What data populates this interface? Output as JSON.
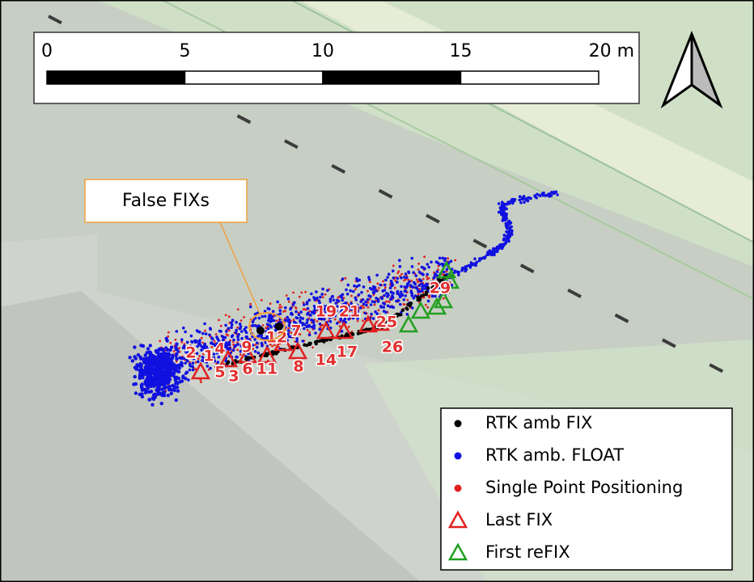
{
  "scale_bar": {
    "labels": [
      "0",
      "5",
      "10",
      "15",
      "20 m"
    ]
  },
  "annotation": "False FIXs",
  "point_labels": [
    "2",
    "1",
    "4",
    "5",
    "3",
    "6",
    "9",
    "11",
    "12",
    "7",
    "8",
    "19",
    "21",
    "14",
    "17",
    "25",
    "26",
    "29"
  ],
  "legend": {
    "items": [
      "RTK amb FIX",
      "RTK amb. FLOAT",
      "Single Point Positioning",
      "Last FIX",
      "First reFIX"
    ]
  }
}
